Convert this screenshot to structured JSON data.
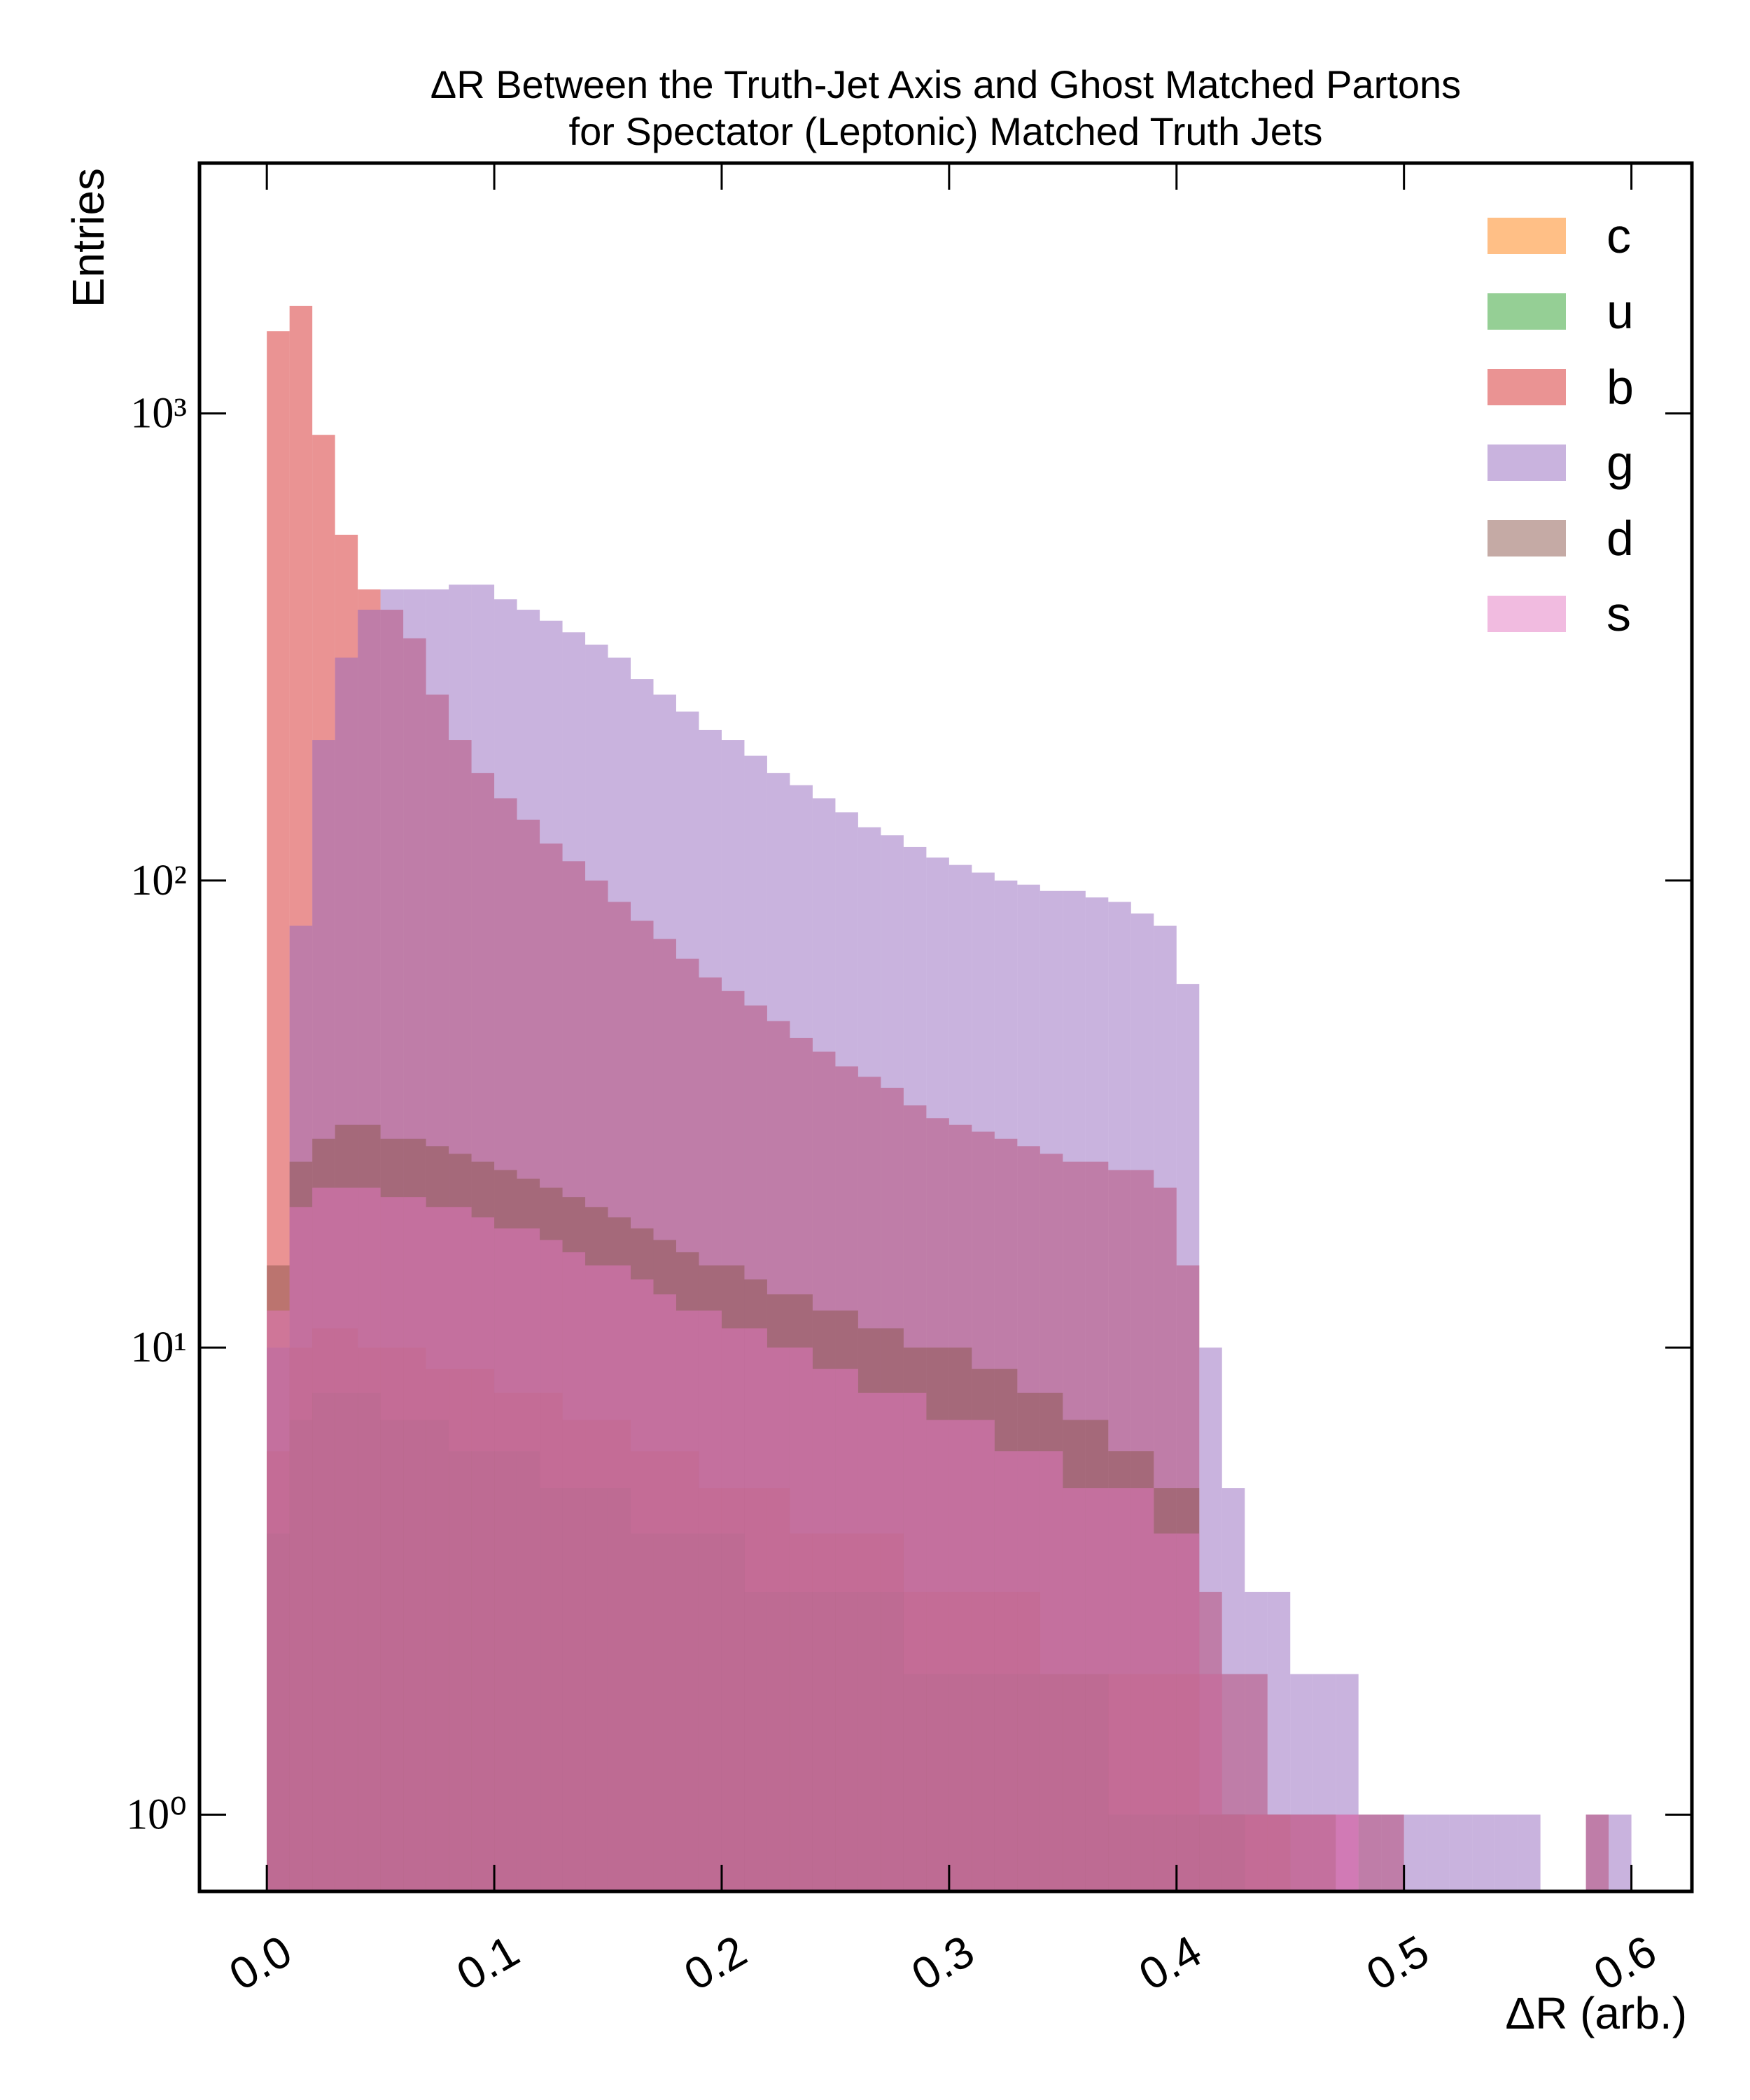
{
  "chart_data": {
    "type": "histogram",
    "title": [
      "ΔR Between the Truth-Jet Axis and Ghost Matched Partons",
      "for Spectator (Leptonic) Matched Truth Jets"
    ],
    "x_label": "ΔR (arb.)",
    "y_label": "Entries",
    "yscale": "log",
    "alpha": 0.5,
    "legend": "upper right",
    "xlim": [
      -0.0296,
      0.6266
    ],
    "ylim": [
      0.685,
      3436
    ],
    "xticks": [
      {
        "value": 0,
        "label": "0.0"
      },
      0.1,
      0.2,
      0.3,
      0.4,
      0.5,
      0.6
    ],
    "yticks": [
      {
        "value": 1,
        "label": "10⁰"
      },
      {
        "value": 10,
        "label": "10¹"
      },
      {
        "value": 100,
        "label": "10²"
      },
      {
        "value": 1000,
        "label": "10³"
      }
    ],
    "bins": [
      0,
      0.01,
      0.02,
      0.03,
      0.04,
      0.05,
      0.06,
      0.07,
      0.08,
      0.09,
      0.1,
      0.11,
      0.12,
      0.13,
      0.14,
      0.15,
      0.16,
      0.17,
      0.18,
      0.19,
      0.2,
      0.21,
      0.22,
      0.23,
      0.24,
      0.25,
      0.26,
      0.27,
      0.28,
      0.29,
      0.3,
      0.31,
      0.32,
      0.33,
      0.34,
      0.35,
      0.36,
      0.37,
      0.38,
      0.39,
      0.4,
      0.41,
      0.42,
      0.43,
      0.44,
      0.45,
      0.46,
      0.47,
      0.48,
      0.49,
      0.5,
      0.51,
      0.52,
      0.53,
      0.54,
      0.55,
      0.56,
      0.57,
      0.58,
      0.59,
      0.6
    ],
    "series": [
      {
        "name": "c",
        "color": "#ff7f0e",
        "values": [
          6,
          10,
          11,
          11,
          10,
          10,
          10,
          9,
          9,
          9,
          8,
          8,
          8,
          7,
          7,
          7,
          6,
          6,
          6,
          5,
          5,
          5,
          5,
          4,
          4,
          4,
          4,
          4,
          3,
          3,
          3,
          3,
          3,
          3,
          2,
          2,
          2,
          2,
          2,
          2,
          2,
          1,
          1,
          1,
          1,
          0,
          0,
          0,
          0,
          0,
          0,
          0,
          0,
          0,
          0,
          0,
          0,
          0,
          0,
          0
        ]
      },
      {
        "name": "u",
        "color": "#2ca02c",
        "values": [
          4,
          7,
          8,
          8,
          8,
          7,
          7,
          7,
          6,
          6,
          6,
          6,
          5,
          5,
          5,
          5,
          4,
          4,
          4,
          4,
          4,
          3,
          3,
          3,
          3,
          3,
          3,
          3,
          2,
          2,
          2,
          2,
          2,
          2,
          2,
          2,
          2,
          1,
          1,
          1,
          1,
          1,
          1,
          0,
          0,
          0,
          0,
          0,
          0,
          0,
          0,
          0,
          0,
          0,
          0,
          0,
          0,
          0,
          0,
          0
        ]
      },
      {
        "name": "b",
        "color": "#d62728",
        "values": [
          1500,
          1700,
          900,
          550,
          420,
          380,
          330,
          250,
          200,
          170,
          150,
          135,
          120,
          110,
          100,
          90,
          82,
          75,
          68,
          62,
          58,
          54,
          50,
          46,
          43,
          40,
          38,
          36,
          33,
          31,
          30,
          29,
          28,
          27,
          26,
          25,
          25,
          24,
          24,
          22,
          15,
          3,
          2,
          2,
          1,
          1,
          1,
          1,
          1,
          1,
          0,
          0,
          0,
          0,
          0,
          0,
          0,
          0,
          1,
          0
        ]
      },
      {
        "name": "g",
        "color": "#9467bd",
        "values": [
          10,
          80,
          200,
          300,
          380,
          420,
          420,
          420,
          430,
          430,
          400,
          380,
          360,
          340,
          320,
          300,
          270,
          250,
          230,
          210,
          200,
          185,
          170,
          160,
          150,
          140,
          130,
          125,
          118,
          112,
          108,
          104,
          100,
          98,
          95,
          95,
          92,
          90,
          85,
          80,
          60,
          10,
          5,
          3,
          3,
          2,
          2,
          2,
          1,
          1,
          1,
          1,
          1,
          1,
          1,
          1,
          0,
          0,
          1,
          1
        ]
      },
      {
        "name": "d",
        "color": "#8c564b",
        "values": [
          15,
          25,
          28,
          30,
          30,
          28,
          28,
          27,
          26,
          25,
          24,
          23,
          22,
          21,
          20,
          19,
          18,
          17,
          16,
          15,
          15,
          14,
          13,
          13,
          12,
          12,
          11,
          11,
          10,
          10,
          10,
          9,
          9,
          8,
          8,
          7,
          7,
          6,
          6,
          5,
          5,
          2,
          1,
          1,
          1,
          1,
          1,
          0,
          0,
          0,
          0,
          0,
          0,
          0,
          0,
          0,
          0,
          0,
          0,
          0
        ]
      },
      {
        "name": "s",
        "color": "#e377c2",
        "values": [
          12,
          20,
          22,
          22,
          22,
          21,
          21,
          20,
          20,
          19,
          18,
          18,
          17,
          16,
          15,
          15,
          14,
          13,
          12,
          12,
          11,
          11,
          10,
          10,
          9,
          9,
          8,
          8,
          8,
          7,
          7,
          7,
          6,
          6,
          6,
          5,
          5,
          5,
          5,
          4,
          4,
          2,
          1,
          1,
          1,
          1,
          1,
          1,
          0,
          0,
          0,
          0,
          0,
          0,
          0,
          0,
          0,
          0,
          0,
          0
        ]
      }
    ]
  }
}
